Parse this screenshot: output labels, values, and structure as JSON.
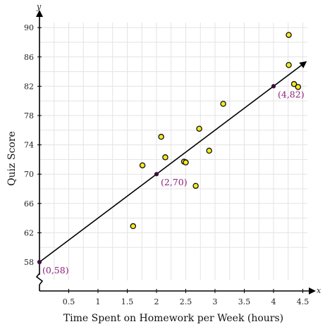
{
  "chart_data": {
    "type": "scatter",
    "xlabel": "Time Spent on Homework per Week (hours)",
    "ylabel": "Quiz Score",
    "x_axis_letter": "x",
    "y_axis_letter": "y",
    "xlim": [
      0,
      4.5
    ],
    "ylim": [
      58,
      91
    ],
    "y_axis_break": true,
    "x_ticks": [
      "0.5",
      "1",
      "1.5",
      "2",
      "2.5",
      "3",
      "3.5",
      "4",
      "4.5"
    ],
    "y_ticks": [
      "58",
      "62",
      "66",
      "70",
      "74",
      "78",
      "82",
      "86",
      "90"
    ],
    "grid": true,
    "points": [
      {
        "x": 1.6,
        "y": 62.9
      },
      {
        "x": 1.76,
        "y": 71.2
      },
      {
        "x": 2.08,
        "y": 75.1
      },
      {
        "x": 2.15,
        "y": 72.3
      },
      {
        "x": 2.47,
        "y": 71.7
      },
      {
        "x": 2.5,
        "y": 71.6
      },
      {
        "x": 2.67,
        "y": 68.4
      },
      {
        "x": 2.73,
        "y": 76.2
      },
      {
        "x": 2.9,
        "y": 73.2
      },
      {
        "x": 3.14,
        "y": 79.6
      },
      {
        "x": 4.26,
        "y": 89.0
      },
      {
        "x": 4.26,
        "y": 84.9
      },
      {
        "x": 4.35,
        "y": 82.3
      },
      {
        "x": 4.42,
        "y": 81.9
      }
    ],
    "trend_line": {
      "slope": 6,
      "intercept": 58,
      "x_start": 0,
      "x_end": 4.55
    },
    "labeled_points": [
      {
        "x": 0,
        "y": 58,
        "label": "(0,58)"
      },
      {
        "x": 2,
        "y": 70,
        "label": "(2,70)"
      },
      {
        "x": 4,
        "y": 82,
        "label": "(4,82)"
      }
    ],
    "colors": {
      "point_fill": "#f5ea1e",
      "point_stroke": "#111111",
      "line": "#000000",
      "annotation": "#8b1f7a",
      "labeled_point": "#3a1038"
    }
  }
}
